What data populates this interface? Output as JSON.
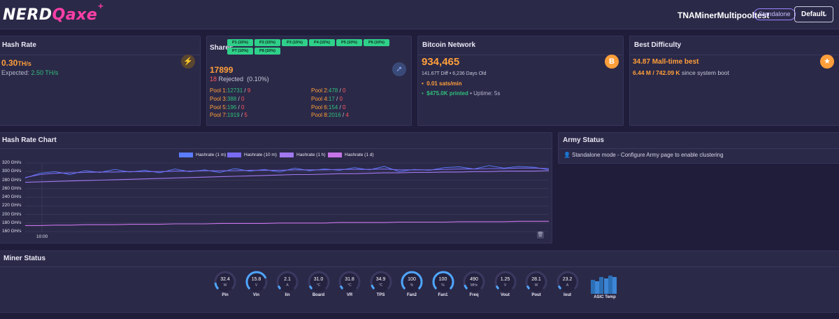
{
  "header": {
    "logo_part1": "NERD",
    "logo_part2": "Qaxe",
    "logo_plus": "+",
    "hostname": "TNAMinerMultipooltest",
    "mode_badge": "Standalone",
    "theme_select": "Default"
  },
  "hash_rate": {
    "title": "Hash Rate",
    "value": "0.30",
    "unit": "TH/s",
    "expected_label": "Expected:",
    "expected_value": "2.50 TH/s"
  },
  "shares": {
    "title": "Shares",
    "pool_badges": [
      "P1 (15%)",
      "P2 (15%)",
      "P3 (15%)",
      "P4 (15%)",
      "P5 (10%)",
      "P6 (10%)",
      "P7 (10%)",
      "P8 (10%)"
    ],
    "accepted": "17899",
    "rejected_count": "18",
    "rejected_label": "Rejected",
    "rejected_pct": "(0.10%)",
    "pools": [
      {
        "label": "Pool 1:",
        "accepted": "12731",
        "rejected": "9"
      },
      {
        "label": "Pool 2:",
        "accepted": "478",
        "rejected": "0"
      },
      {
        "label": "Pool 3:",
        "accepted": "388",
        "rejected": "0"
      },
      {
        "label": "Pool 4:",
        "accepted": "17",
        "rejected": "0"
      },
      {
        "label": "Pool 5:",
        "accepted": "196",
        "rejected": "0"
      },
      {
        "label": "Pool 6:",
        "accepted": "154",
        "rejected": "0"
      },
      {
        "label": "Pool 7:",
        "accepted": "1919",
        "rejected": "5"
      },
      {
        "label": "Pool 8:",
        "accepted": "2016",
        "rejected": "4"
      }
    ]
  },
  "bitcoin": {
    "title": "Bitcoin Network",
    "block_height": "934,465",
    "diff_info": "141.67T Diff • 6,236 Days Old",
    "sats": "0.01 sats/min",
    "printed": "$475.0K printed",
    "uptime": "• Uptime: 5s"
  },
  "best_difficulty": {
    "title": "Best Difficulty",
    "value": "34.87 M",
    "all_time": "all-time best",
    "since_values": "6.44 M / 742.09 K",
    "since_text": "since system boot"
  },
  "chart": {
    "title": "Hash Rate Chart",
    "x_tick": "10:00"
  },
  "chart_data": {
    "type": "line",
    "title": "",
    "legend_position": "top",
    "y_ticks": [
      "320 GH/s",
      "300 GH/s",
      "280 GH/s",
      "260 GH/s",
      "240 GH/s",
      "220 GH/s",
      "200 GH/s",
      "180 GH/s",
      "160 GH/s"
    ],
    "x_ticks": [
      "10:00"
    ],
    "ylim": [
      160,
      320
    ],
    "grid": true,
    "series": [
      {
        "name": "Hashrate (1 m)",
        "color": "#5b7cff",
        "values": [
          285,
          296,
          300,
          293,
          302,
          298,
          305,
          299,
          303,
          297,
          306,
          300,
          304,
          298,
          307,
          301,
          305,
          299,
          308,
          302,
          306,
          303,
          309,
          304,
          312,
          300,
          305,
          303,
          309,
          311,
          306,
          314,
          308,
          312,
          310,
          304
        ]
      },
      {
        "name": "Hashrate (10 m)",
        "color": "#7a6cf2",
        "values": [
          286,
          293,
          296,
          297,
          298,
          299,
          299,
          300,
          300,
          300,
          301,
          301,
          302,
          302,
          302,
          303,
          303,
          303,
          304,
          304,
          304,
          305,
          305,
          305,
          306,
          304,
          304,
          304,
          305,
          306,
          306,
          307,
          307,
          308,
          308,
          307
        ]
      },
      {
        "name": "Hashrate (1 h)",
        "color": "#a178f0",
        "values": [
          275,
          276,
          277,
          278,
          279,
          280,
          281,
          282,
          283,
          284,
          285,
          286,
          287,
          288,
          289,
          290,
          291,
          292,
          293,
          293,
          294,
          295,
          295,
          296,
          297,
          297,
          298,
          298,
          299,
          299,
          300,
          300,
          301,
          301,
          301,
          302
        ]
      },
      {
        "name": "Hashrate (1 d)",
        "color": "#c774e8",
        "values": [
          174,
          174,
          175,
          175,
          176,
          176,
          176,
          177,
          177,
          177,
          178,
          178,
          178,
          179,
          179,
          179,
          179,
          180,
          180,
          180,
          180,
          181,
          181,
          181,
          181,
          182,
          182,
          182,
          182,
          183,
          183,
          183,
          183,
          184,
          184,
          184
        ]
      }
    ]
  },
  "army": {
    "title": "Army Status",
    "message": "Standalone mode - Configure Army page to enable clustering"
  },
  "miner_status": {
    "title": "Miner Status",
    "gauges": [
      {
        "label": "Pin",
        "value": "32.4",
        "unit": "W",
        "fraction": 0.15
      },
      {
        "label": "Vin",
        "value": "15.8",
        "unit": "V",
        "fraction": 0.75
      },
      {
        "label": "Iin",
        "value": "2.1",
        "unit": "A",
        "fraction": 0.08
      },
      {
        "label": "Board",
        "value": "31.0",
        "unit": "°C",
        "fraction": 0.08
      },
      {
        "label": "VR",
        "value": "31.8",
        "unit": "°C",
        "fraction": 0.08
      },
      {
        "label": "TPS",
        "value": "34.9",
        "unit": "°C",
        "fraction": 0.1
      },
      {
        "label": "Fan2",
        "value": "100",
        "unit": "%",
        "fraction": 1.0
      },
      {
        "label": "Fan1",
        "value": "100",
        "unit": "%",
        "fraction": 1.0
      },
      {
        "label": "Freq",
        "value": "490",
        "unit": "MHz",
        "fraction": 0.1
      },
      {
        "label": "Vout",
        "value": "1.25",
        "unit": "V",
        "fraction": 0.08
      },
      {
        "label": "Pout",
        "value": "28.1",
        "unit": "W",
        "fraction": 0.08
      },
      {
        "label": "Iout",
        "value": "23.2",
        "unit": "A",
        "fraction": 0.08
      }
    ],
    "asic_label": "ASIC Temp",
    "asic_cells": [
      "28.8",
      "30.0",
      "29.5",
      "31.2",
      "30.4",
      "29.9"
    ]
  }
}
